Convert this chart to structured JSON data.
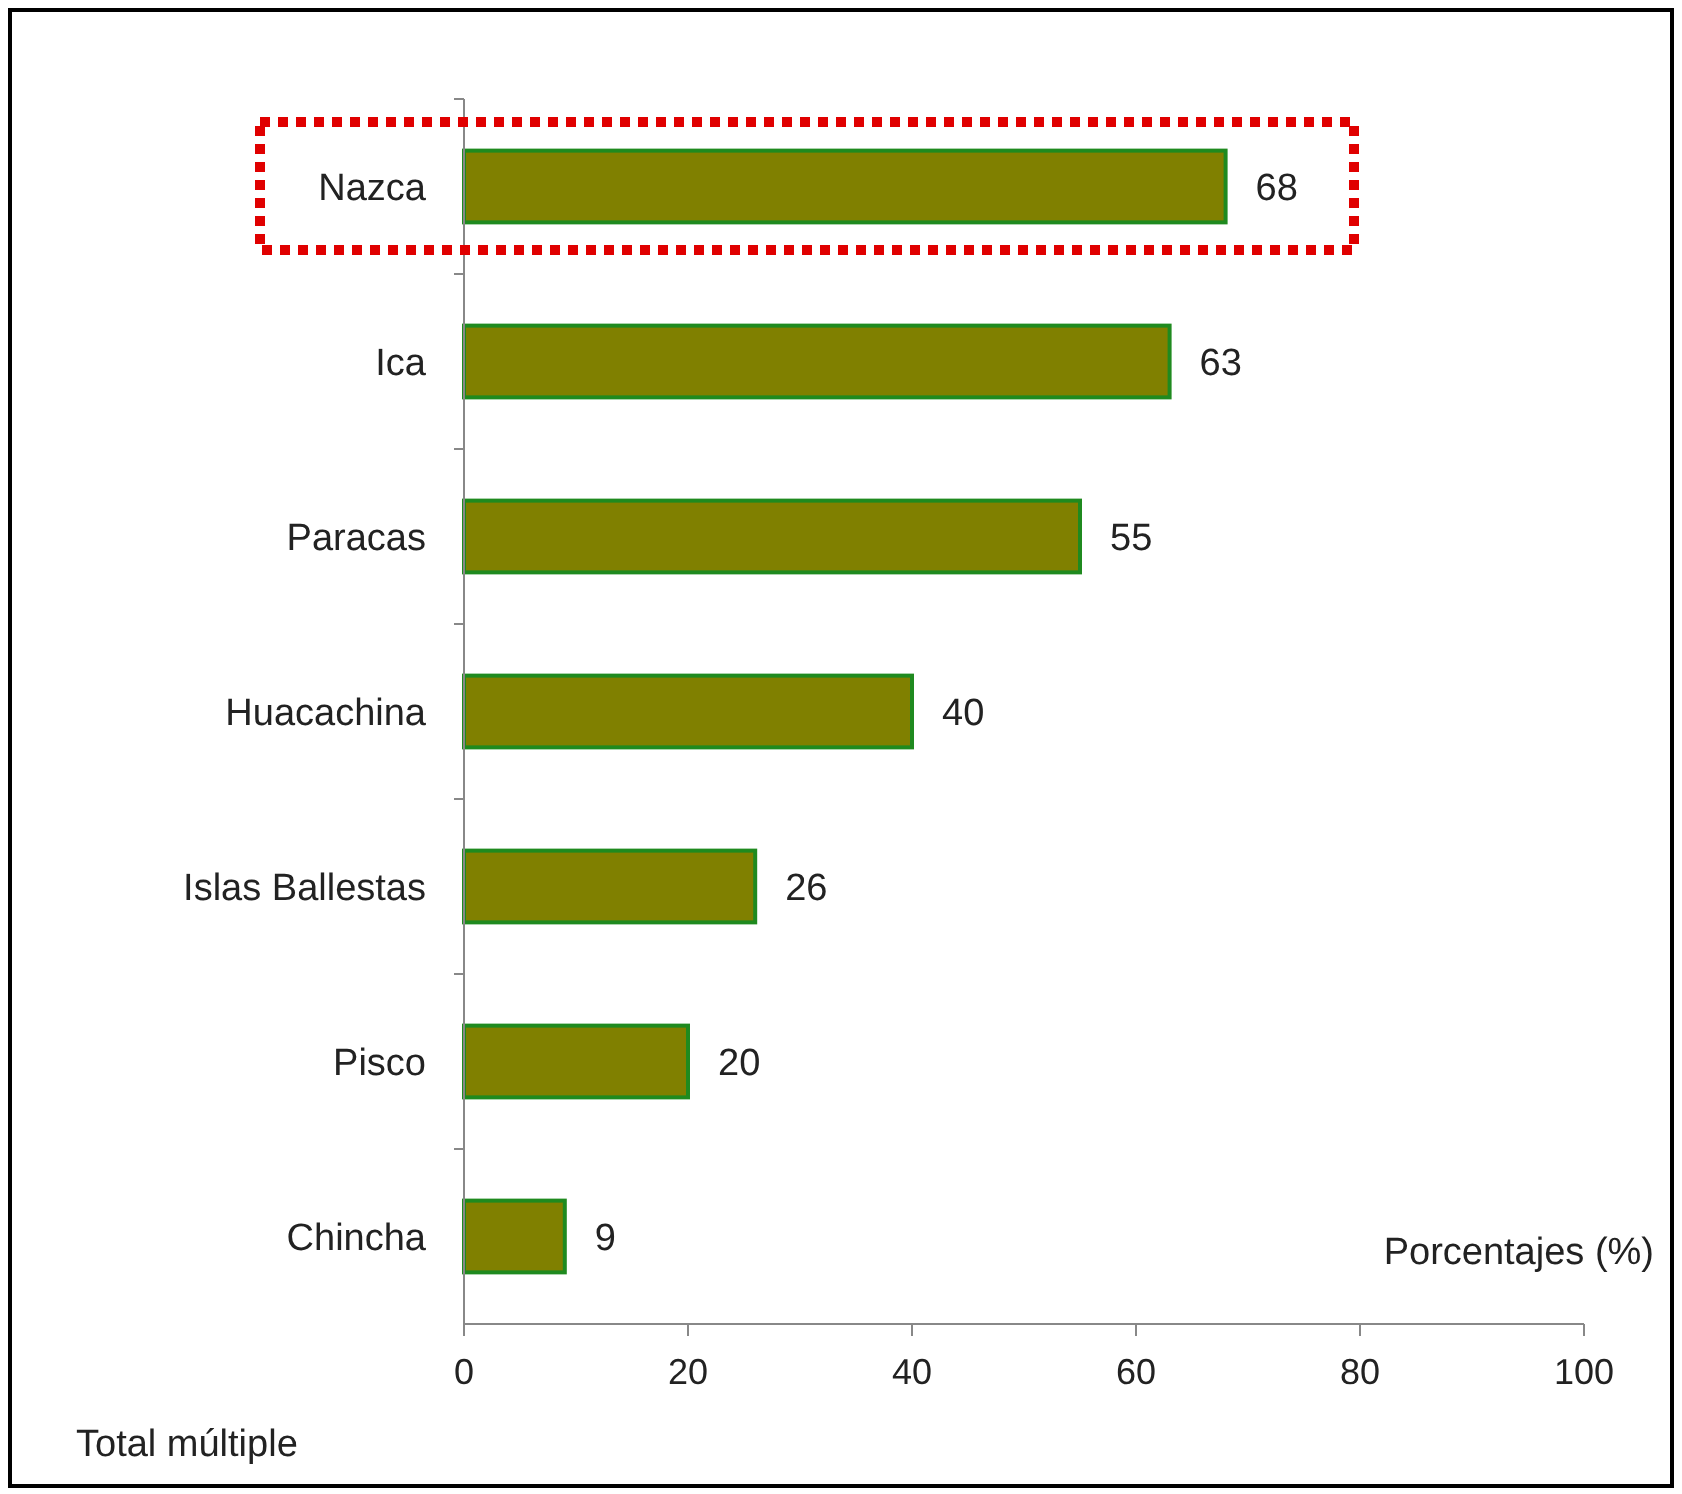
{
  "chart_data": {
    "type": "bar",
    "orientation": "horizontal",
    "xlabel": "Porcentajes (%)",
    "categories": [
      "Nazca",
      "Ica",
      "Paracas",
      "Huacachina",
      "Islas Ballestas",
      "Pisco",
      "Chincha"
    ],
    "values": [
      68,
      63,
      55,
      40,
      26,
      20,
      9
    ],
    "color": "#808000",
    "xlim": [
      0,
      100
    ],
    "xticks": [
      0,
      20,
      40,
      60,
      80,
      100
    ],
    "grid": false,
    "data_labels": true,
    "annotations": [
      "Total múltiple"
    ]
  }
}
